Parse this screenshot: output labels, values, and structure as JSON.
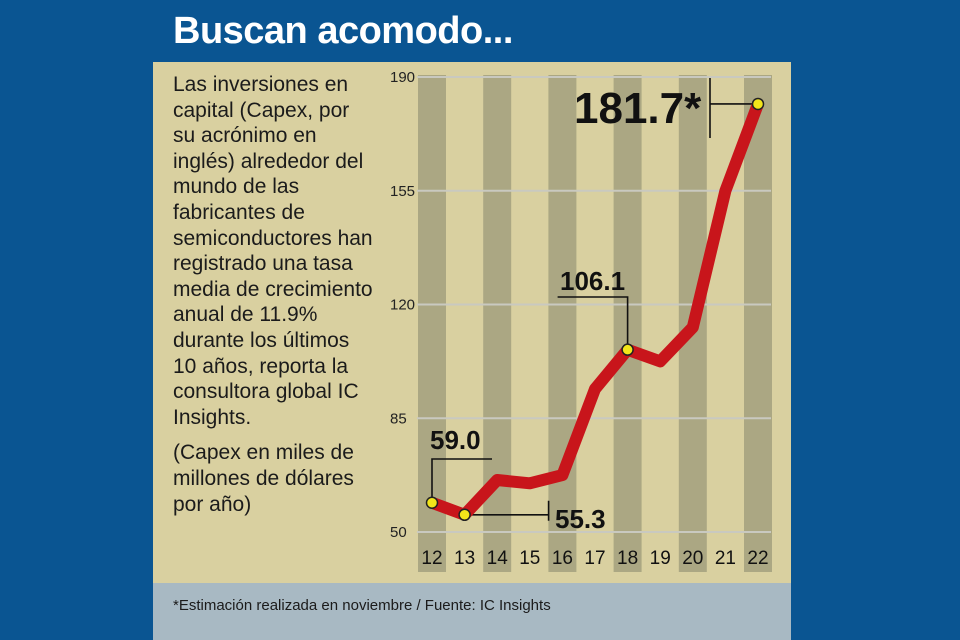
{
  "colors": {
    "background": "#0a5592",
    "panel": "#d9d0a0",
    "stripe": "#9b9a7a",
    "line": "#c8151b",
    "marker": "#f2e51a",
    "footer": "#a8b9c3"
  },
  "title": "Buscan acomodo...",
  "description": [
    "Las inversiones en capital (Capex, por su acrónimo en inglés) alrededor del mundo de las fabricantes de semiconductores han registrado una tasa media de crecimiento anual de 11.9% durante los últimos 10 años, reporta la consultora global IC Insights.",
    "(Capex en miles de millones de dólares por año)"
  ],
  "footnote": "*Estimación realizada en noviembre / Fuente: IC Insights",
  "chart_data": {
    "type": "line",
    "title": "",
    "xlabel": "",
    "ylabel": "",
    "x": [
      "12",
      "13",
      "14",
      "15",
      "16",
      "17",
      "18",
      "19",
      "20",
      "21",
      "22"
    ],
    "series": [
      {
        "values": [
          59.0,
          55.3,
          66.0,
          65.0,
          67.5,
          94.0,
          106.1,
          102.5,
          113.0,
          155.0,
          181.7
        ]
      }
    ],
    "ylim": [
      50,
      190
    ],
    "yticks": [
      50,
      85,
      120,
      155,
      190
    ],
    "grid": true,
    "shaded_years": [
      "12",
      "14",
      "16",
      "18",
      "20",
      "22"
    ],
    "labels": [
      {
        "x": "12",
        "text": "59.0"
      },
      {
        "x": "13",
        "text": "55.3"
      },
      {
        "x": "18",
        "text": "106.1"
      },
      {
        "x": "22",
        "text": "181.7*"
      }
    ],
    "markers": [
      "12",
      "13",
      "18",
      "22"
    ]
  }
}
